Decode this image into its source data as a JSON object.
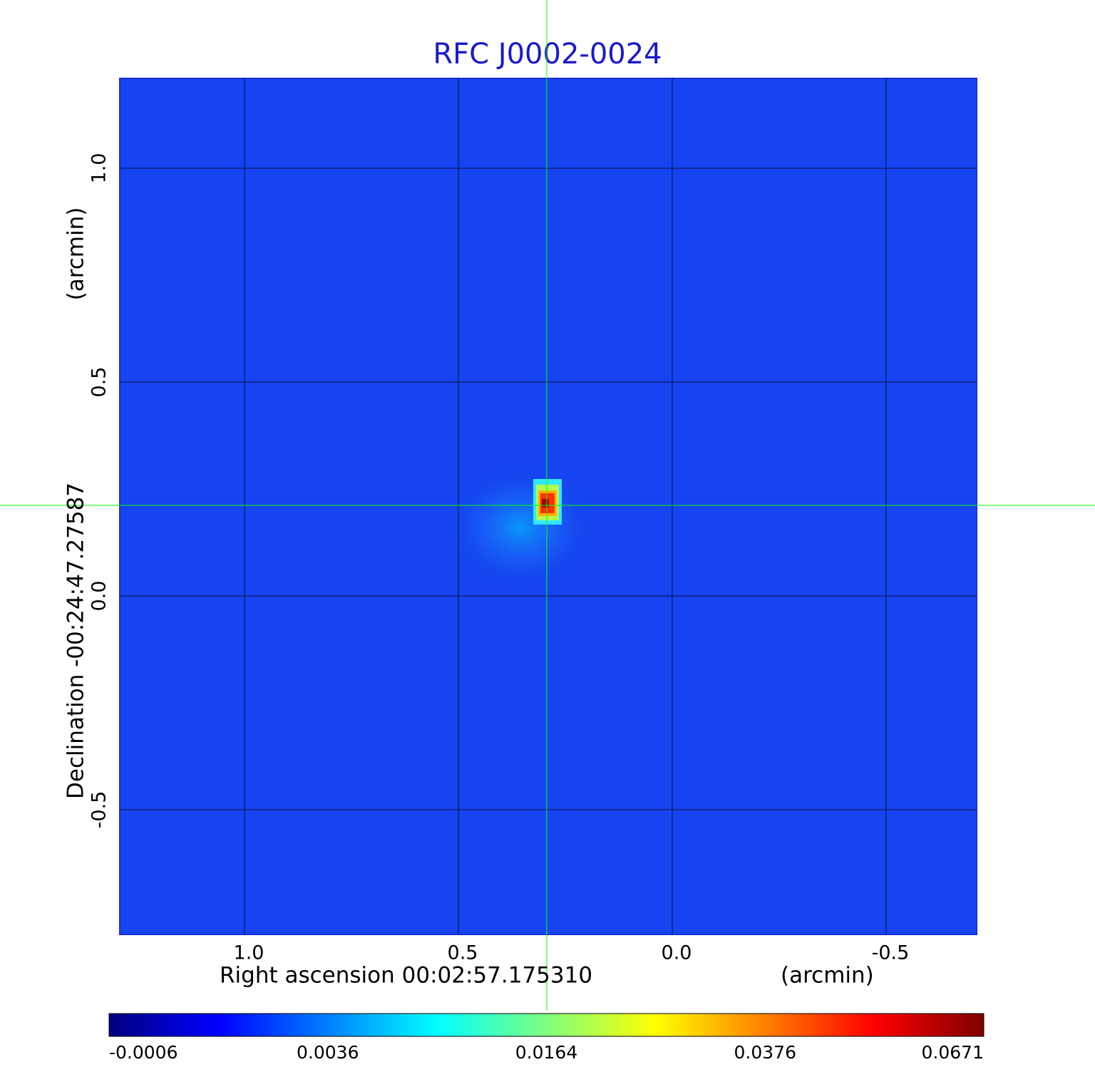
{
  "chart_data": {
    "type": "image",
    "title": "RFC J0002-0024",
    "x_label": "Right ascension  00:02:57.175310",
    "x_unit": "(arcmin)",
    "y_label": "Declination  -00:24:47.27587",
    "y_unit": "(arcmin)",
    "xlim": [
      1.2917,
      -0.7117
    ],
    "xticks": [
      {
        "value": 1,
        "label": "1.0"
      },
      {
        "value": 0.5,
        "label": "0.5"
      },
      {
        "value": 0,
        "label": "0.0"
      },
      {
        "value": -0.5,
        "label": "-0.5"
      }
    ],
    "ylim": [
      -0.7917,
      1.21
    ],
    "yticks": [
      {
        "value": 1,
        "label": "1.0"
      },
      {
        "value": 0.5,
        "label": "0.5"
      },
      {
        "value": 0,
        "label": "0.0"
      },
      {
        "value": -0.5,
        "label": "-0.5"
      }
    ],
    "grid": true,
    "colorbar": {
      "colors": [
        "#00007f",
        "#0000ff",
        "#007fff",
        "#00ffff",
        "#7fff7f",
        "#ffff00",
        "#ff7f00",
        "#ff0000",
        "#7f0000"
      ],
      "ticks": [
        -0.0006,
        0.0036,
        0.0164,
        0.0376,
        0.0671
      ]
    }
  }
}
